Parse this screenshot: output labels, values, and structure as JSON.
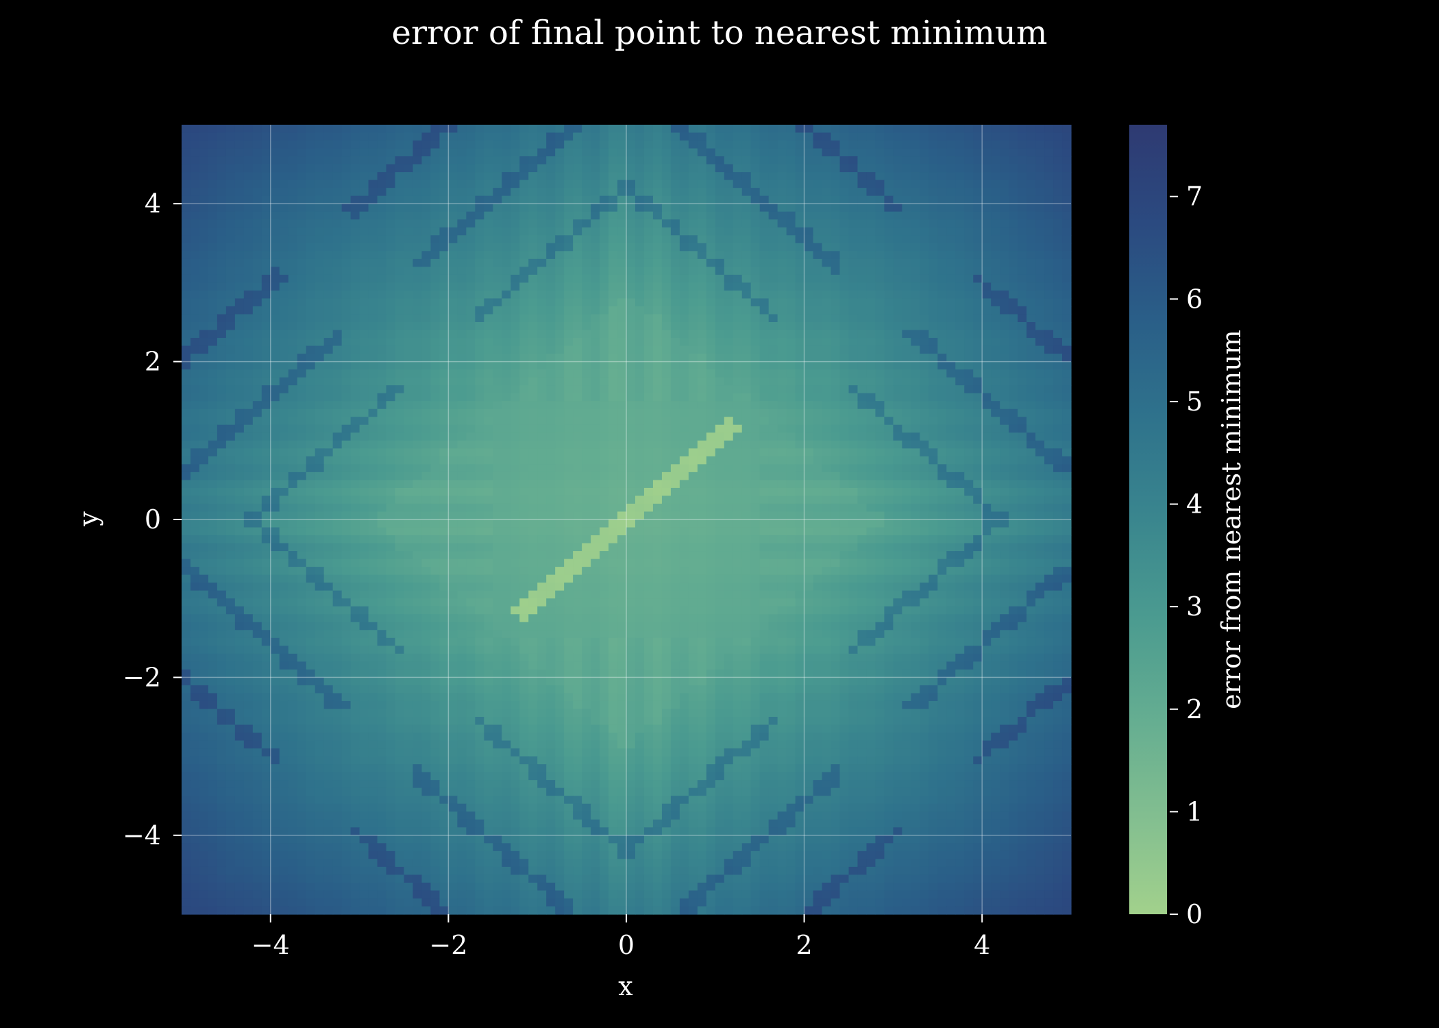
{
  "chart_data": {
    "type": "heatmap",
    "title": "error of final point to nearest minimum",
    "xlabel": "x",
    "ylabel": "y",
    "xlim": [
      -5,
      5
    ],
    "ylim": [
      -5,
      5
    ],
    "x_ticks": [
      -4,
      -2,
      0,
      2,
      4
    ],
    "y_ticks": [
      -4,
      -2,
      0,
      2,
      4
    ],
    "x_tick_labels": [
      "−4",
      "−2",
      "0",
      "2",
      "4"
    ],
    "y_tick_labels": [
      "−4",
      "−2",
      "0",
      "2",
      "4"
    ],
    "grid": true,
    "grid_resolution": 100,
    "colorbar": {
      "label": "error from nearest minimum",
      "range": [
        0,
        7.7
      ],
      "ticks": [
        0,
        1,
        2,
        3,
        4,
        5,
        6,
        7
      ],
      "tick_labels": [
        "0",
        "1",
        "2",
        "3",
        "4",
        "5",
        "6",
        "7"
      ],
      "colormap": [
        "#a2d18c",
        "#82be90",
        "#64ad91",
        "#4b9b90",
        "#3a868e",
        "#2f738c",
        "#2a5f88",
        "#2b4a80",
        "#2e3a72"
      ]
    },
    "description_of_field": "error is lowest (≈0) along the diagonal segment through the origin from about (-1.2,-1.2) to (1.2,1.2); a diamond-shaped region |x|+|y|<~3 has error ≈1.5–2.5; error grows outward toward the corners (≈7), with thin dark ridge lines along diagonal curves"
  },
  "colors": {
    "background": "#000000",
    "text": "#ffffff",
    "grid": "#ffffff"
  }
}
